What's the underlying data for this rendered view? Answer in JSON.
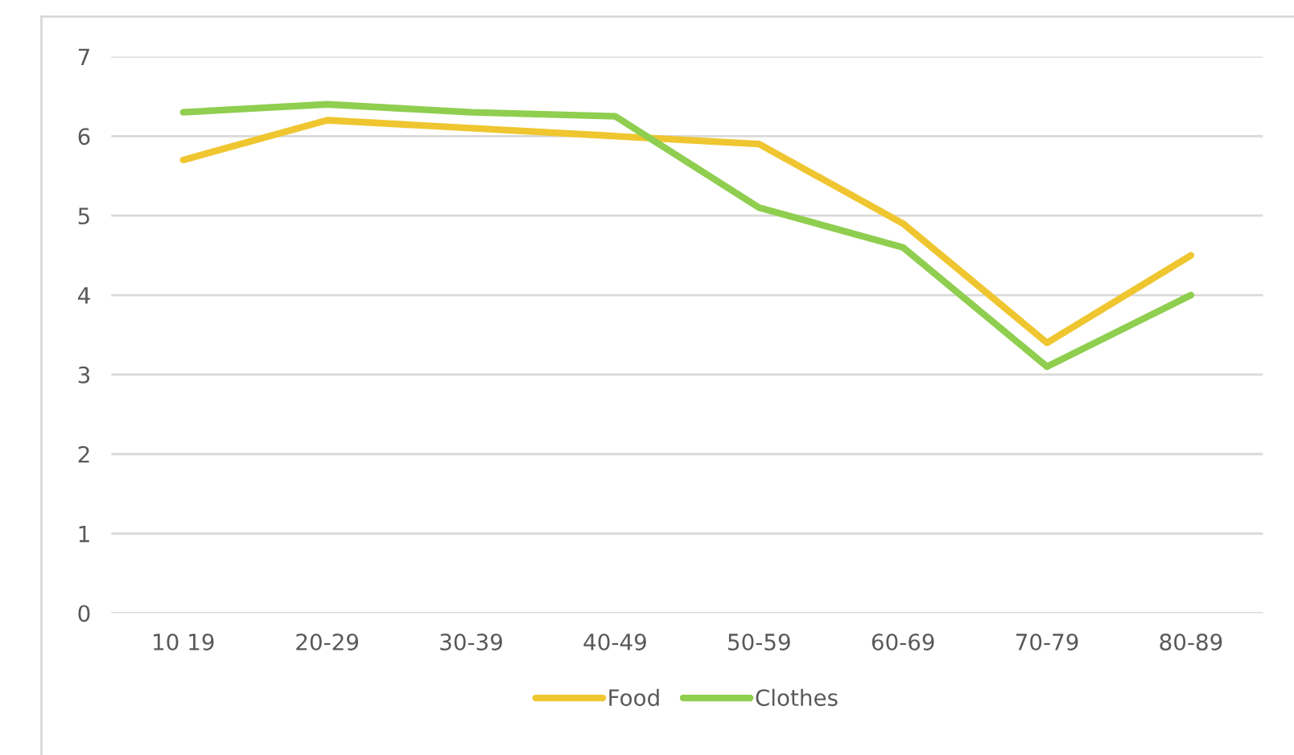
{
  "chart_data": {
    "type": "line",
    "categories": [
      "10 19",
      "20-29",
      "30-39",
      "40-49",
      "50-59",
      "60-69",
      "70-79",
      "80-89"
    ],
    "series": [
      {
        "name": "Food",
        "color": "#efc630",
        "values": [
          5.7,
          6.2,
          6.1,
          6.0,
          5.9,
          4.9,
          3.4,
          4.5
        ]
      },
      {
        "name": "Clothes",
        "color": "#8fce4f",
        "values": [
          6.3,
          6.4,
          6.3,
          6.25,
          5.1,
          4.6,
          3.1,
          4.0
        ]
      }
    ],
    "ylim": [
      0,
      7
    ],
    "yticks": [
      0,
      1,
      2,
      3,
      4,
      5,
      6,
      7
    ],
    "grid": "y",
    "legend": "bottom",
    "marker": "none",
    "line_style": "solid"
  }
}
